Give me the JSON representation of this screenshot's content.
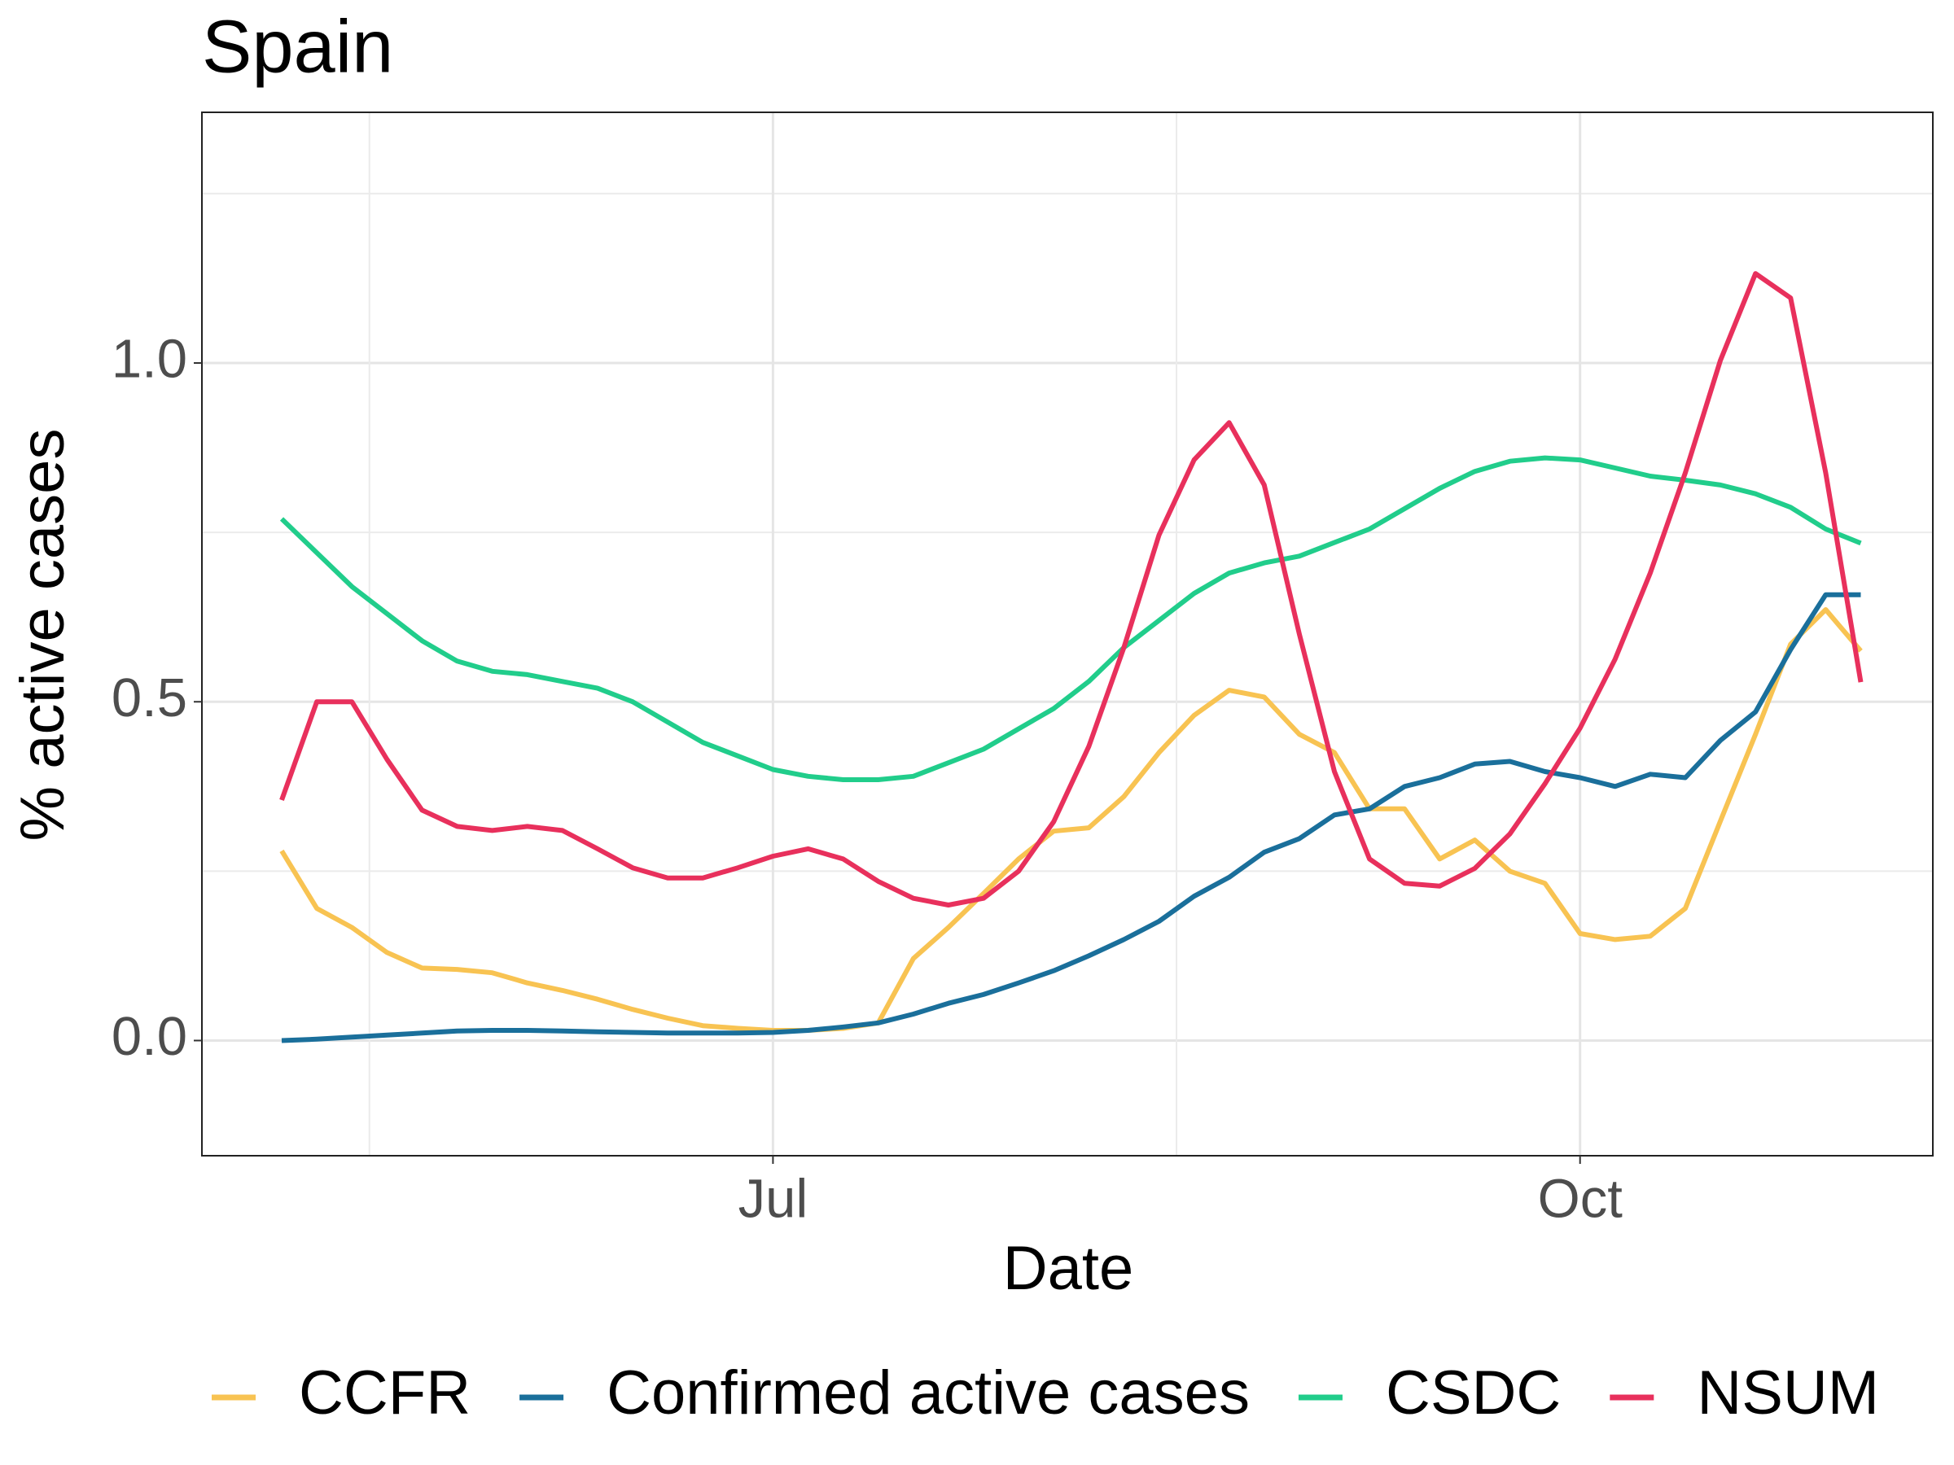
{
  "chart_data": {
    "type": "line",
    "title": "Spain",
    "x_label": "Date",
    "y_label": "% active cases",
    "categories": [
      null,
      null,
      null,
      null,
      null,
      null,
      null,
      null,
      null,
      null,
      null,
      null,
      null,
      null,
      "Jul",
      null,
      null,
      null,
      null,
      null,
      null,
      null,
      null,
      null,
      null,
      null,
      null,
      null,
      null,
      null,
      null,
      null,
      null,
      null,
      null,
      null,
      null,
      "Oct",
      null,
      null,
      null,
      null,
      null,
      null,
      null,
      null
    ],
    "ylim": [
      -0.17,
      1.37
    ],
    "yticks": [
      {
        "value": 0,
        "label": "0.0"
      },
      {
        "value": 0.5,
        "label": "0.5"
      },
      {
        "value": 1,
        "label": "1.0"
      }
    ],
    "grid": true,
    "legend": "bottom",
    "series": [
      {
        "name": "CCFR",
        "color": "#f8c352",
        "values": [
          0.28,
          0.195,
          0.167,
          0.13,
          0.107,
          0.105,
          0.1,
          0.085,
          0.074,
          0.061,
          0.046,
          0.033,
          0.022,
          0.018,
          0.015,
          0.015,
          0.018,
          0.026,
          0.121,
          0.167,
          0.217,
          0.268,
          0.309,
          0.314,
          0.36,
          0.425,
          0.48,
          0.517,
          0.507,
          0.452,
          0.425,
          0.342,
          0.342,
          0.268,
          0.296,
          0.25,
          0.232,
          0.158,
          0.149,
          0.154,
          0.195,
          0.324,
          0.452,
          0.585,
          0.636,
          0.575
        ]
      },
      {
        "name": "Confirmed active cases",
        "color": "#1a6f9b",
        "values": [
          0,
          0.002,
          0.005,
          0.008,
          0.011,
          0.014,
          0.015,
          0.015,
          0.014,
          0.013,
          0.012,
          0.011,
          0.011,
          0.011,
          0.012,
          0.015,
          0.02,
          0.026,
          0.039,
          0.055,
          0.068,
          0.085,
          0.103,
          0.125,
          0.149,
          0.176,
          0.213,
          0.241,
          0.278,
          0.298,
          0.333,
          0.342,
          0.375,
          0.388,
          0.408,
          0.412,
          0.397,
          0.388,
          0.375,
          0.393,
          0.388,
          0.443,
          0.485,
          0.577,
          0.658,
          0.658
        ]
      },
      {
        "name": "CSDC",
        "color": "#21cd8b",
        "values": [
          0.77,
          0.72,
          0.67,
          0.63,
          0.59,
          0.56,
          0.545,
          0.54,
          0.53,
          0.52,
          0.5,
          0.47,
          0.44,
          0.42,
          0.4,
          0.39,
          0.385,
          0.385,
          0.39,
          0.41,
          0.43,
          0.46,
          0.49,
          0.53,
          0.58,
          0.62,
          0.66,
          0.69,
          0.705,
          0.715,
          0.735,
          0.755,
          0.785,
          0.815,
          0.84,
          0.855,
          0.86,
          0.857,
          0.845,
          0.833,
          0.827,
          0.82,
          0.807,
          0.787,
          0.755,
          0.734
        ]
      },
      {
        "name": "NSUM",
        "color": "#e8305c",
        "values": [
          0.355,
          0.5,
          0.5,
          0.415,
          0.34,
          0.316,
          0.31,
          0.316,
          0.31,
          0.283,
          0.255,
          0.24,
          0.24,
          0.255,
          0.272,
          0.283,
          0.268,
          0.235,
          0.21,
          0.2,
          0.21,
          0.25,
          0.323,
          0.434,
          0.58,
          0.746,
          0.857,
          0.912,
          0.82,
          0.6,
          0.397,
          0.268,
          0.232,
          0.228,
          0.254,
          0.305,
          0.379,
          0.461,
          0.563,
          0.69,
          0.838,
          1.004,
          1.132,
          1.096,
          0.838,
          0.529
        ]
      }
    ]
  }
}
